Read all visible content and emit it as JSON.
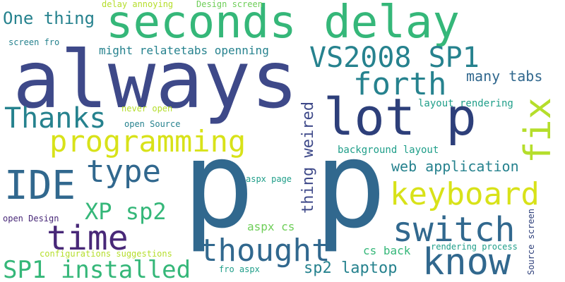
{
  "words": {
    "always": "always",
    "p1": "p",
    "p2": "p",
    "seconds_delay": "seconds delay",
    "lot_p": "lot p",
    "fix": "fix",
    "programming": "programming",
    "vs2008": "VS2008 SP1",
    "forth": "forth",
    "thanks": "Thanks",
    "ide": "IDE",
    "type": "type",
    "keyboard": "keyboard",
    "xp_sp2": "XP sp2",
    "time": "time",
    "switch": "switch",
    "thought": "thought",
    "know": "know",
    "sp1_installed": "SP1 installed",
    "sp2_laptop": "sp2 laptop",
    "one_thing": "One thing",
    "thing_weired": "thing weired",
    "web_application": "web application",
    "many_tabs": "many tabs",
    "might_relate": "might relatetabs openning",
    "layout_rendering": "layout rendering",
    "background_layout": "background layout",
    "aspx_cs": "aspx cs",
    "cs_back": "cs back",
    "rendering_process": "rendering process",
    "source_screen": "Source screen",
    "never_open": "never open",
    "open_source": "open Source",
    "aspx_page": "aspx page",
    "open_design": "open Design",
    "configurations": "configurations suggestions",
    "fro_aspx": "fro aspx",
    "delay_annoying": "delay annoying",
    "design_screen": "Design screen",
    "screen_fro": "screen fro"
  },
  "colors": {
    "dark_purple": "#482878",
    "indigo": "#3e4989",
    "slate_blue": "#31688e",
    "teal": "#26828e",
    "teal_green": "#1f9e89",
    "green": "#35b779",
    "light_green": "#6ece58",
    "lime": "#b5de2b",
    "yellow": "#d8e219",
    "navy": "#2d3f7a"
  }
}
